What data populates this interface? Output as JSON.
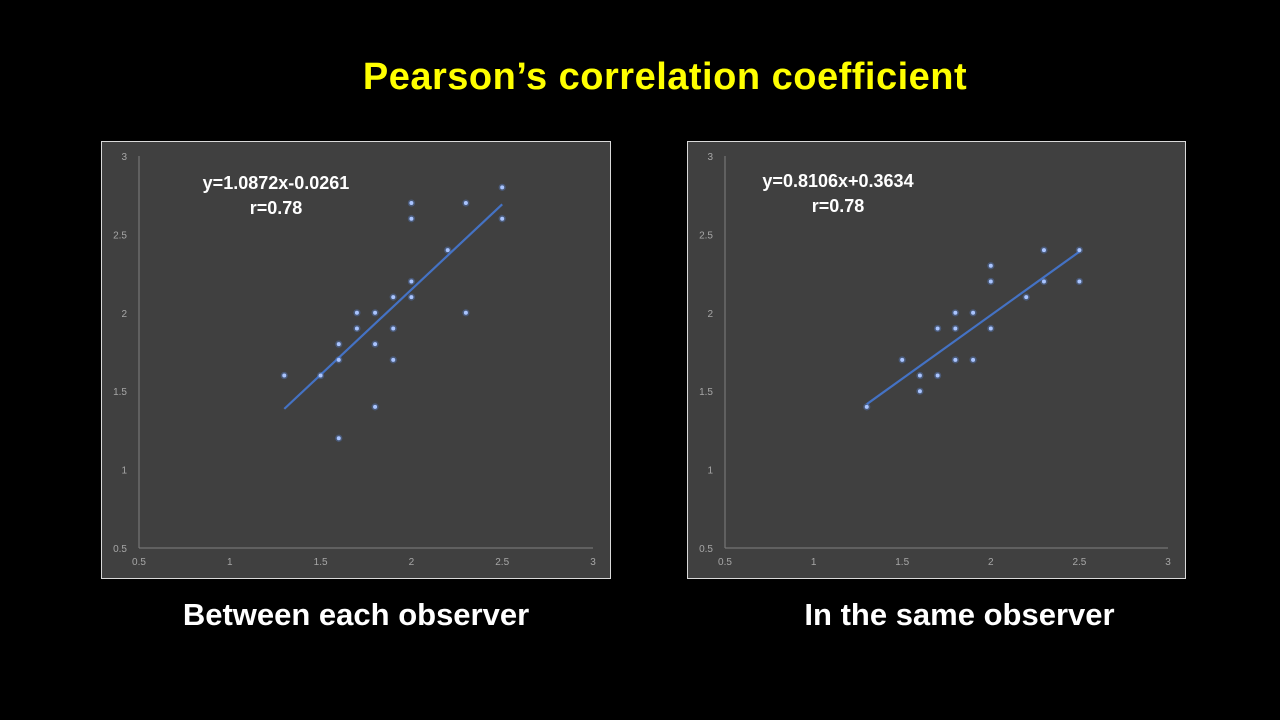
{
  "title": "Pearson’s correlation coefficient",
  "colors": {
    "title": "#ffff00",
    "panel": "#404040",
    "marker": "#4472c4",
    "trend": "#4472c4",
    "axis": "#a6a6a6"
  },
  "chart_data": [
    {
      "type": "scatter",
      "caption": "Between each observer",
      "equation": "y=1.0872x-0.0261",
      "r_label": "r=0.78",
      "xlim": [
        0.5,
        3
      ],
      "ylim": [
        0.5,
        3
      ],
      "xticks": [
        "0.5",
        "1",
        "1.5",
        "2",
        "2.5",
        "3"
      ],
      "yticks": [
        "0.5",
        "1",
        "1.5",
        "2",
        "2.5",
        "3"
      ],
      "grid": false,
      "trendline": {
        "slope": 1.0872,
        "intercept": -0.0261,
        "x_range": [
          1.3,
          2.5
        ]
      },
      "points": [
        [
          1.3,
          1.6
        ],
        [
          1.5,
          1.6
        ],
        [
          1.6,
          1.2
        ],
        [
          1.6,
          1.7
        ],
        [
          1.6,
          1.8
        ],
        [
          1.7,
          1.9
        ],
        [
          1.7,
          2.0
        ],
        [
          1.8,
          1.4
        ],
        [
          1.8,
          1.8
        ],
        [
          1.8,
          2.0
        ],
        [
          1.9,
          1.7
        ],
        [
          1.9,
          1.9
        ],
        [
          1.9,
          2.1
        ],
        [
          2.0,
          2.1
        ],
        [
          2.0,
          2.2
        ],
        [
          2.0,
          2.6
        ],
        [
          2.0,
          2.7
        ],
        [
          2.2,
          2.4
        ],
        [
          2.3,
          2.0
        ],
        [
          2.3,
          2.7
        ],
        [
          2.5,
          2.6
        ],
        [
          2.5,
          2.8
        ]
      ]
    },
    {
      "type": "scatter",
      "caption": "In the same observer",
      "equation": "y=0.8106x+0.3634",
      "r_label": "r=0.78",
      "xlim": [
        0.5,
        3
      ],
      "ylim": [
        0.5,
        3
      ],
      "xticks": [
        "0.5",
        "1",
        "1.5",
        "2",
        "2.5",
        "3"
      ],
      "yticks": [
        "0.5",
        "1",
        "1.5",
        "2",
        "2.5",
        "3"
      ],
      "grid": false,
      "trendline": {
        "slope": 0.8106,
        "intercept": 0.3634,
        "x_range": [
          1.3,
          2.5
        ]
      },
      "points": [
        [
          1.3,
          1.4
        ],
        [
          1.5,
          1.7
        ],
        [
          1.6,
          1.5
        ],
        [
          1.6,
          1.6
        ],
        [
          1.7,
          1.6
        ],
        [
          1.7,
          1.9
        ],
        [
          1.8,
          1.7
        ],
        [
          1.8,
          1.9
        ],
        [
          1.8,
          2.0
        ],
        [
          1.9,
          1.7
        ],
        [
          1.9,
          2.0
        ],
        [
          2.0,
          1.9
        ],
        [
          2.0,
          2.2
        ],
        [
          2.0,
          2.3
        ],
        [
          2.2,
          2.1
        ],
        [
          2.3,
          2.2
        ],
        [
          2.3,
          2.4
        ],
        [
          2.5,
          2.2
        ],
        [
          2.5,
          2.4
        ]
      ]
    }
  ]
}
